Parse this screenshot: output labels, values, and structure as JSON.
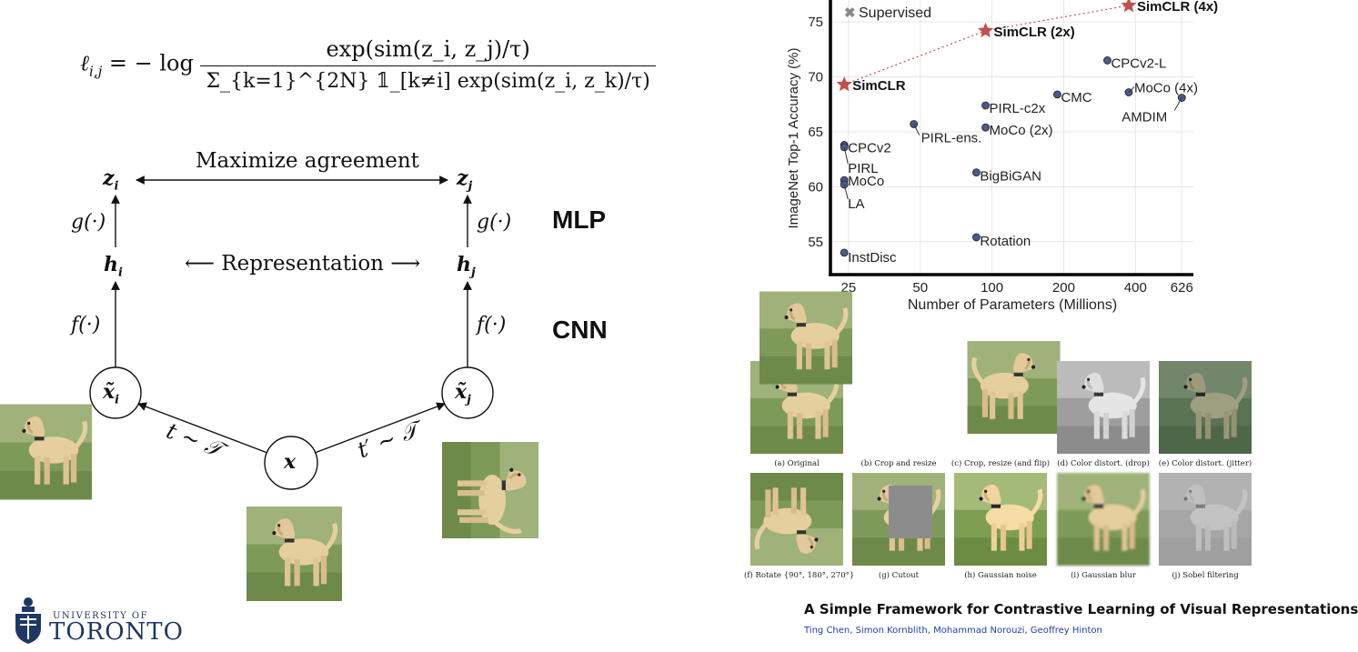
{
  "formula": {
    "lhs": "ℓ",
    "lhs_sub": "i,j",
    "eq": " = − log ",
    "numerator": "exp(sim(z_i, z_j)/τ)",
    "denominator": "Σ_{k=1}^{2N} 𝟙_[k≠i] exp(sim(z_i, z_k)/τ)"
  },
  "diagram": {
    "maximize_agreement": "Maximize agreement",
    "representation": "⟵ Representation ⟶",
    "z_i": "z",
    "z_j": "z",
    "h_i": "h",
    "h_j": "h",
    "g_left": "g(·)",
    "g_right": "g(·)",
    "f_left": "f(·)",
    "f_right": "f(·)",
    "x_tilde_i": "x̃",
    "x_tilde_j": "x̃",
    "x": "x",
    "t_left": "t ∼ 𝒯",
    "t_right": "t′ ∼ 𝒯",
    "mlp": "MLP",
    "cnn": "CNN",
    "sub_i": "i",
    "sub_j": "j"
  },
  "logo": {
    "line1": "UNIVERSITY OF",
    "line2": "TORONTO"
  },
  "chart_data": {
    "type": "scatter",
    "xlabel": "Number of Parameters (Millions)",
    "ylabel": "ImageNet Top-1 Accuracy (%)",
    "xscale": "log",
    "xticks": [
      25,
      50,
      100,
      200,
      400,
      626
    ],
    "yticks": [
      55,
      60,
      65,
      70,
      75
    ],
    "xlim": [
      21,
      700
    ],
    "ylim": [
      52,
      77
    ],
    "legend": "Supervised",
    "simclr_series": [
      {
        "label": "SimCLR",
        "x": 24,
        "y": 69.3
      },
      {
        "label": "SimCLR (2x)",
        "x": 94,
        "y": 74.2
      },
      {
        "label": "SimCLR (4x)",
        "x": 375,
        "y": 76.5
      }
    ],
    "points": [
      {
        "label": "CPCv2-L",
        "x": 305,
        "y": 71.5
      },
      {
        "label": "CMC",
        "x": 188,
        "y": 68.4
      },
      {
        "label": "MoCo (4x)",
        "x": 375,
        "y": 68.6
      },
      {
        "label": "AMDIM",
        "x": 626,
        "y": 68.1
      },
      {
        "label": "PIRL-c2x",
        "x": 94,
        "y": 67.4
      },
      {
        "label": "MoCo (2x)",
        "x": 94,
        "y": 65.4
      },
      {
        "label": "PIRL-ens.",
        "x": 47,
        "y": 65.7
      },
      {
        "label": "CPCv2",
        "x": 24,
        "y": 63.8
      },
      {
        "label": "PIRL",
        "x": 24,
        "y": 63.6
      },
      {
        "label": "BigBiGAN",
        "x": 86,
        "y": 61.3
      },
      {
        "label": "MoCo",
        "x": 24,
        "y": 60.6
      },
      {
        "label": "LA",
        "x": 24,
        "y": 60.2
      },
      {
        "label": "Rotation",
        "x": 86,
        "y": 55.4
      },
      {
        "label": "InstDisc",
        "x": 24,
        "y": 54.0
      }
    ],
    "colors": {
      "simclr": "#c0504d",
      "point": "#4a5a8c",
      "supervised": "#888888"
    }
  },
  "augmentations": [
    {
      "caption": "(a) Original"
    },
    {
      "caption": "(b) Crop and resize"
    },
    {
      "caption": "(c) Crop, resize (and flip)"
    },
    {
      "caption": "(d) Color distort. (drop)"
    },
    {
      "caption": "(e) Color distort. (jitter)"
    },
    {
      "caption": "(f) Rotate {90°, 180°, 270°}"
    },
    {
      "caption": "(g) Cutout"
    },
    {
      "caption": "(h) Gaussian noise"
    },
    {
      "caption": "(i) Gaussian blur"
    },
    {
      "caption": "(j) Sobel filtering"
    }
  ],
  "paper": {
    "title": "A Simple Framework for Contrastive Learning of Visual Representations",
    "author1": "Ting Chen",
    "author2": "Simon Kornblith",
    "author3": "Mohammad Norouzi",
    "author4": "Geoffrey Hinton",
    "sep": ", "
  }
}
